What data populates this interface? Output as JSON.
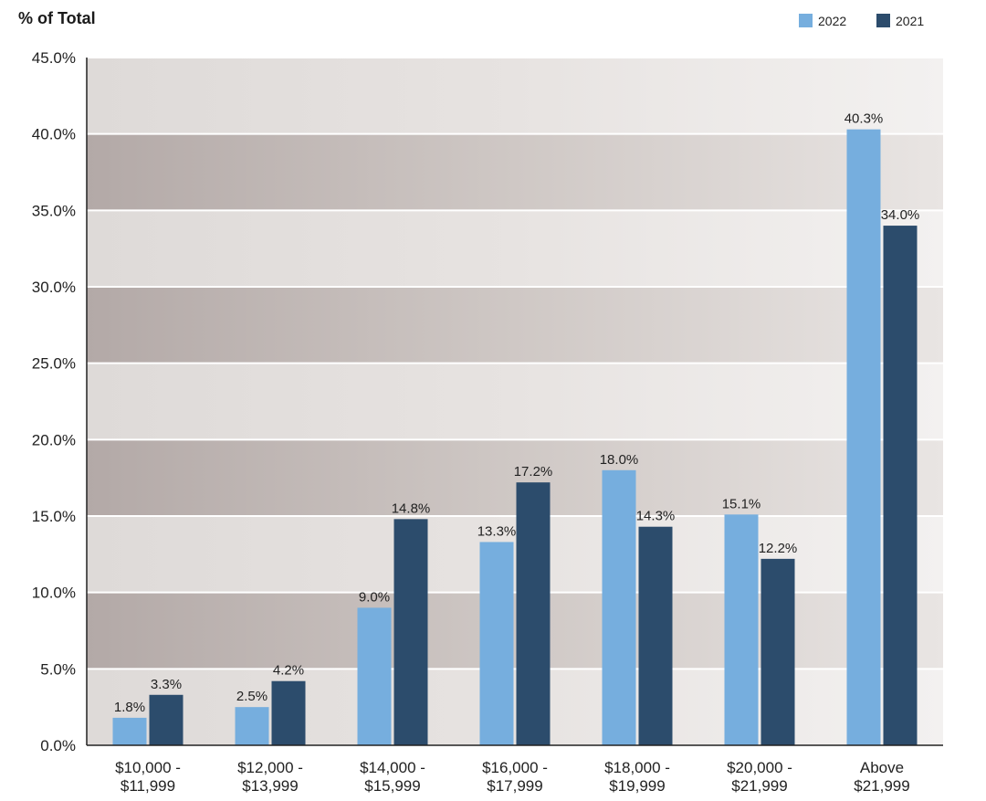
{
  "chart_data": {
    "type": "bar",
    "ylabel": "% of Total",
    "categories": [
      [
        "$10,000 -",
        "$11,999"
      ],
      [
        "$12,000 -",
        "$13,999"
      ],
      [
        "$14,000 -",
        "$15,999"
      ],
      [
        "$16,000 -",
        "$17,999"
      ],
      [
        "$18,000 -",
        "$19,999"
      ],
      [
        "$20,000 -",
        "$21,999"
      ],
      [
        "Above",
        "$21,999"
      ]
    ],
    "series": [
      {
        "name": "2022",
        "color": "#76aede",
        "values": [
          1.8,
          2.5,
          9.0,
          13.3,
          18.0,
          15.1,
          40.3
        ],
        "labels": [
          "1.8%",
          "2.5%",
          "9.0%",
          "13.3%",
          "18.0%",
          "15.1%",
          "40.3%"
        ]
      },
      {
        "name": "2021",
        "color": "#2c4c6c",
        "values": [
          3.3,
          4.2,
          14.8,
          17.2,
          14.3,
          12.2,
          34.0
        ],
        "labels": [
          "3.3%",
          "4.2%",
          "14.8%",
          "17.2%",
          "14.3%",
          "12.2%",
          "34.0%"
        ]
      }
    ],
    "ylim": [
      0,
      45
    ],
    "yticks": [
      "0.0%",
      "5.0%",
      "10.0%",
      "15.0%",
      "20.0%",
      "25.0%",
      "30.0%",
      "35.0%",
      "40.0%",
      "45.0%"
    ],
    "legend_position": "top-right",
    "grid": true
  }
}
